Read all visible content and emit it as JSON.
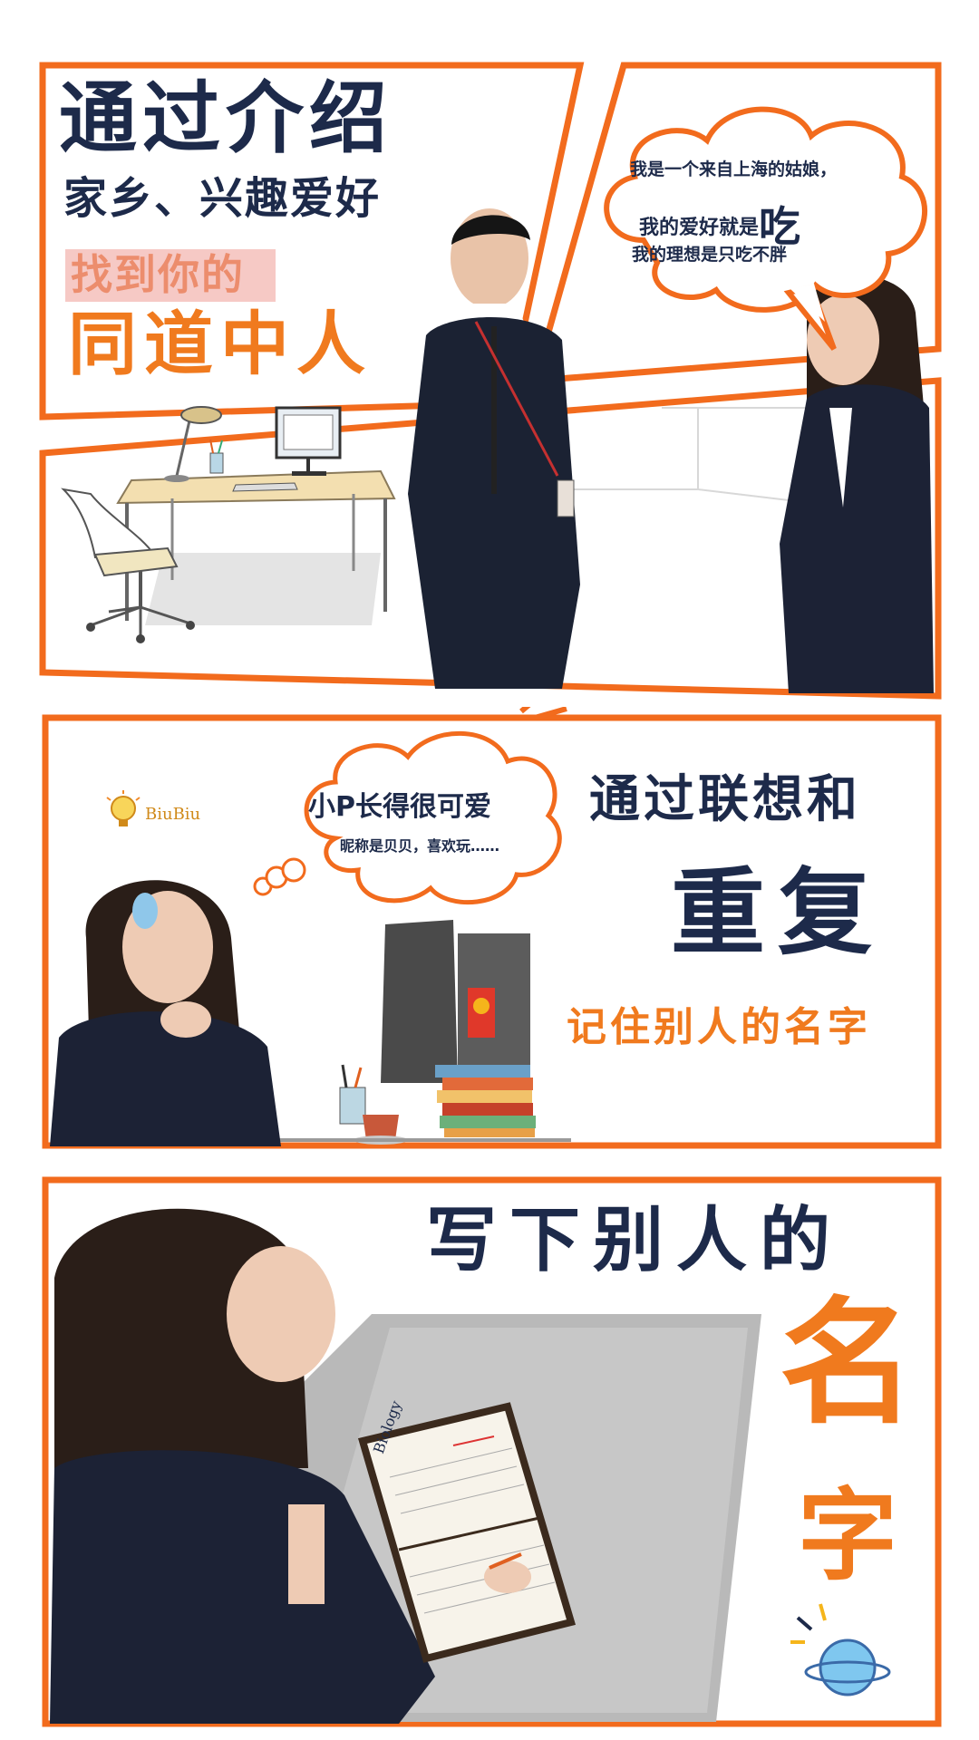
{
  "panel1": {
    "headline_line1": "通过介绍",
    "headline_line2": "家乡、兴趣爱好",
    "highlight": "找到你的",
    "headline_line3": "同道中人",
    "bubble": {
      "line1": "我是一个来自上海的姑娘，",
      "line2_prefix": "我的爱好就是",
      "line2_emph": "吃",
      "line3": "我的理想是只吃不胖"
    }
  },
  "panel2": {
    "bubble": {
      "line1": "小P长得很可爱",
      "line2": "昵称是贝贝，喜欢玩……"
    },
    "logo": "BiuBiu",
    "headline_line1": "通过联想和",
    "headline_emph": "重复",
    "headline_line3": "记住别人的名字"
  },
  "panel3": {
    "headline_line1": "写下别人的",
    "headline_char1": "名",
    "headline_char2": "字",
    "notebook_word": "Biology"
  },
  "colors": {
    "frame": "#f26b1d",
    "navy": "#1d2a4a",
    "orange": "#f07a1e",
    "pink": "#f6c9c5"
  }
}
